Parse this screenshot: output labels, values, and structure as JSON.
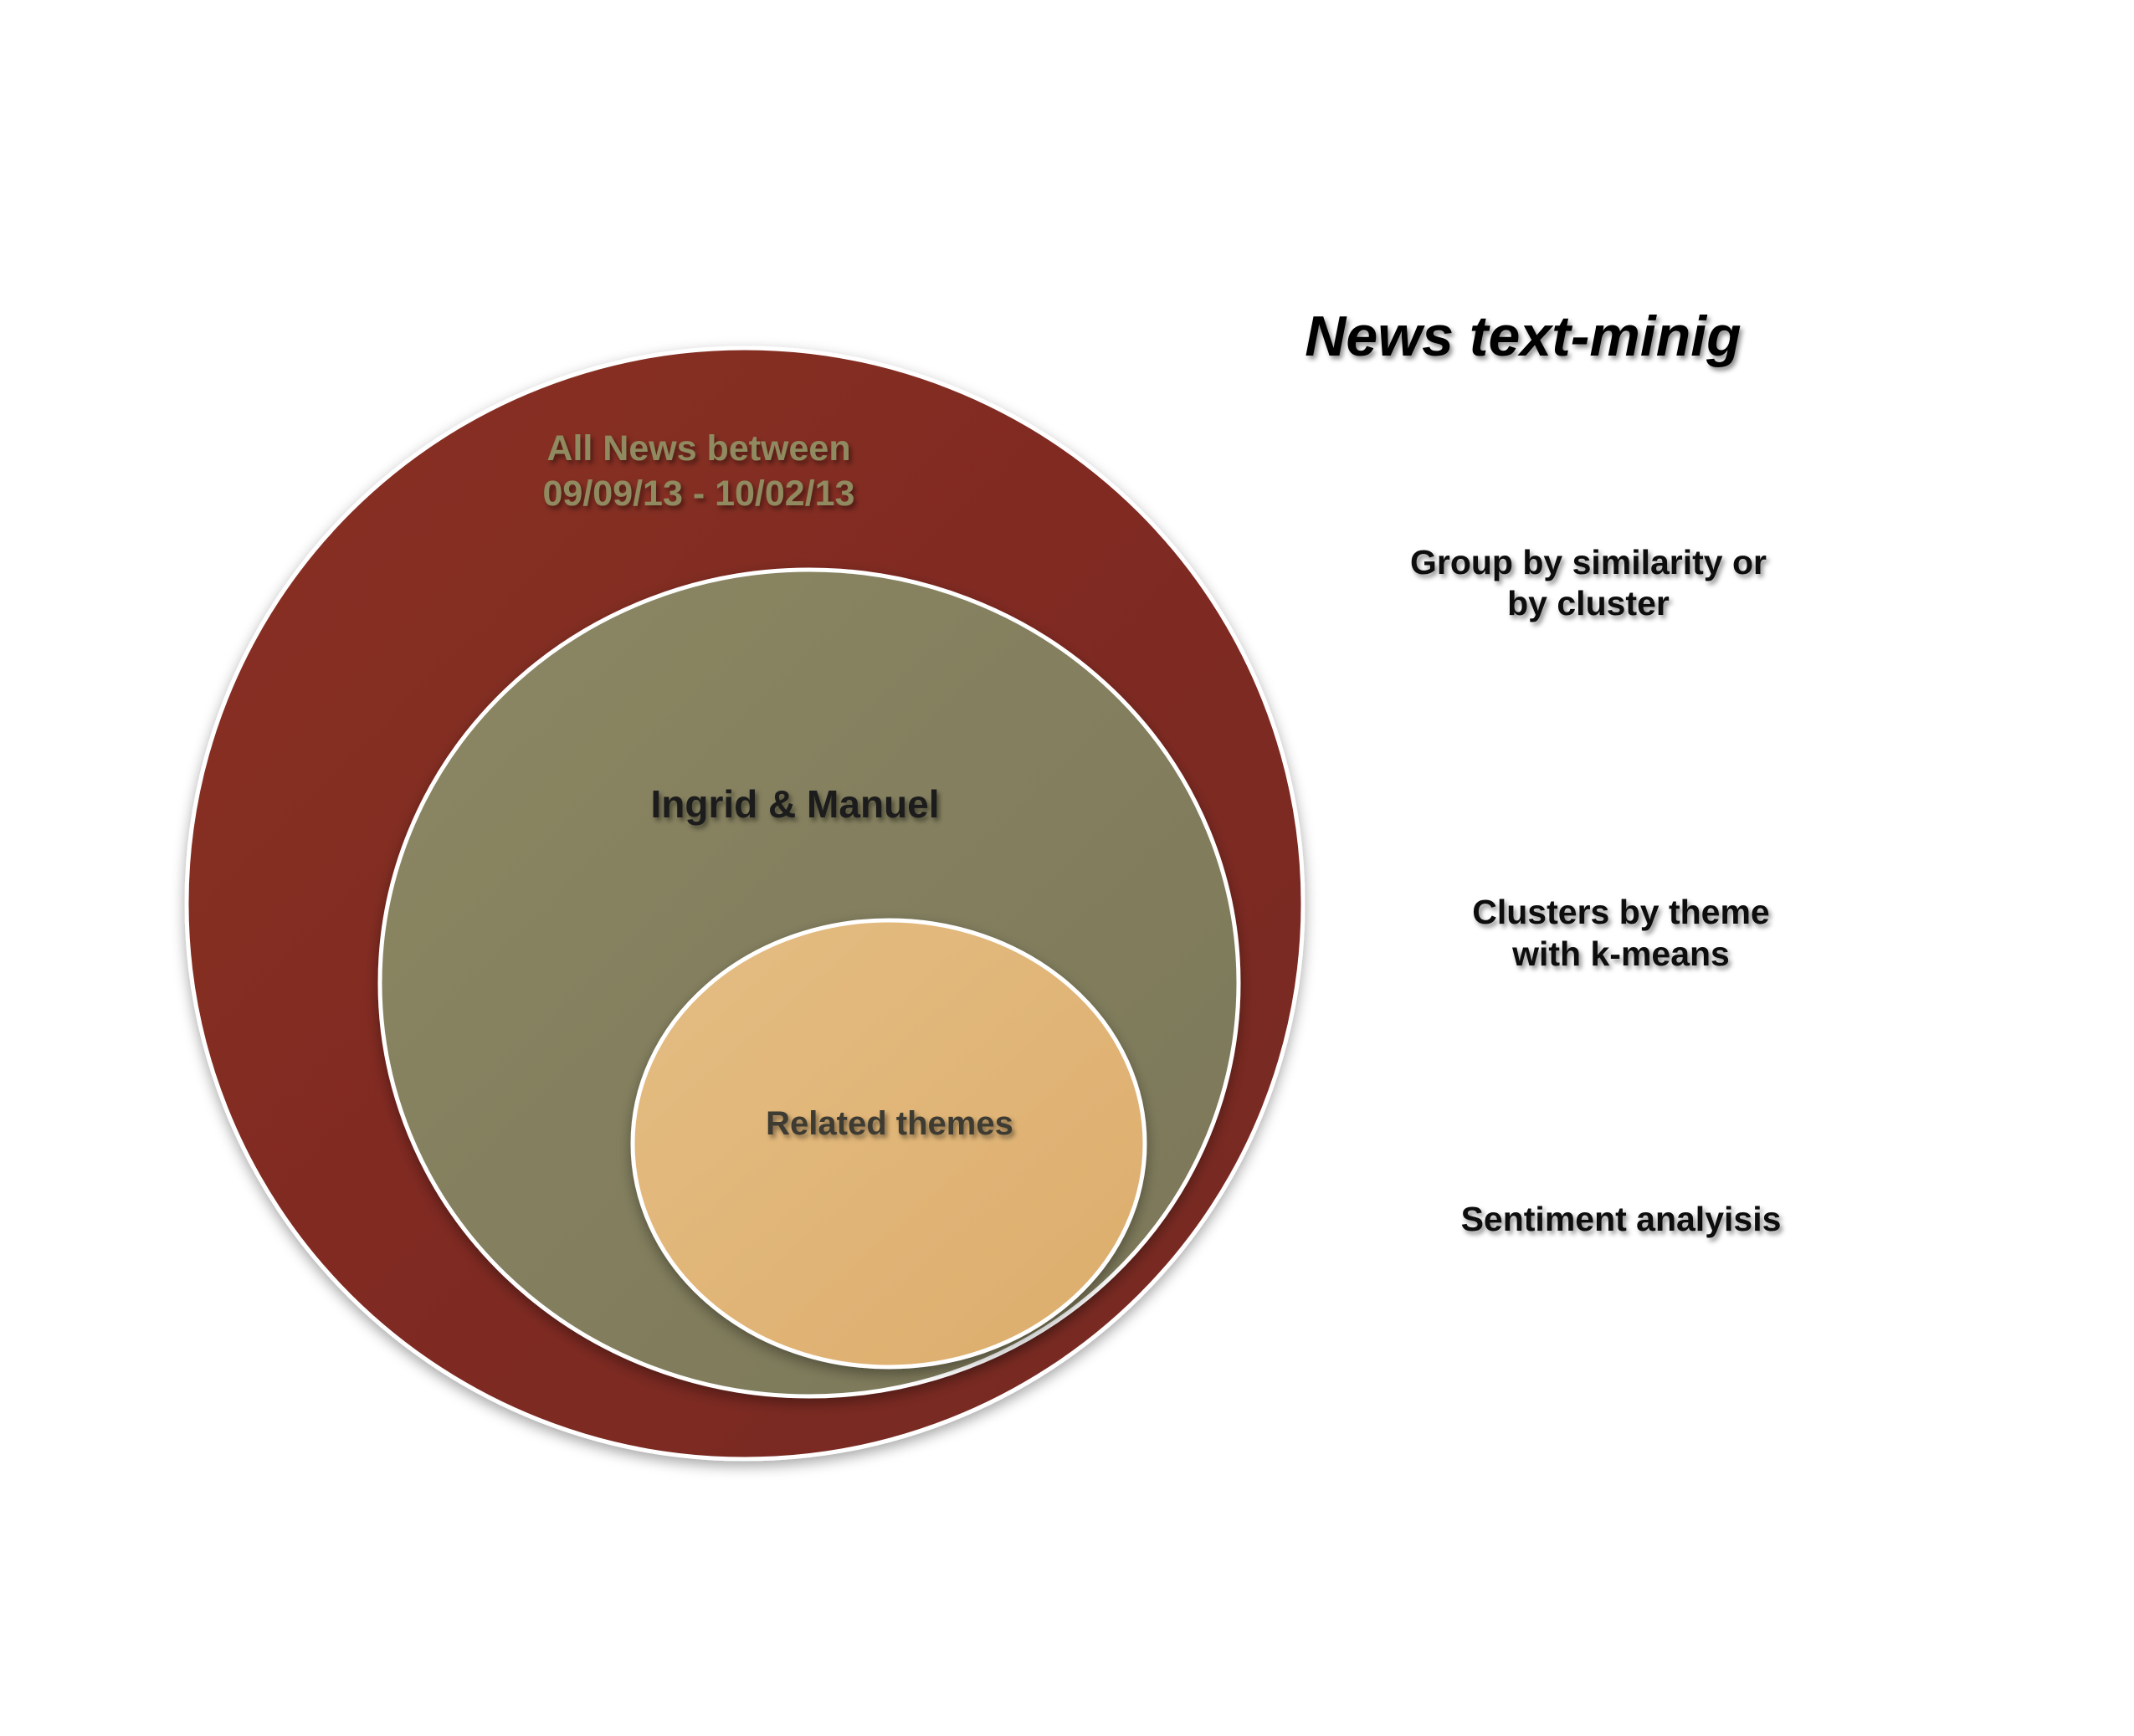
{
  "title": "News text-minig",
  "colors": {
    "outer_fill": "#832d23",
    "middle_fill": "#858060",
    "inner_fill": "#e0b47a",
    "outer_label": "#8f8a5e",
    "middle_label": "#1a1a1a",
    "inner_label": "#3d3a30",
    "side_label": "#111111"
  },
  "circles": {
    "outer": {
      "line1": "All News between",
      "line2": "09/09/13 - 10/02/13"
    },
    "middle": {
      "label": "Ingrid & Manuel"
    },
    "inner": {
      "label": "Related themes"
    }
  },
  "side_labels": {
    "group": {
      "line1": "Group by similarity or",
      "line2": "by cluster"
    },
    "clusters": {
      "line1": "Clusters by theme",
      "line2": "with k-means"
    },
    "sentiment": {
      "line1": "Sentiment analyisis"
    }
  }
}
